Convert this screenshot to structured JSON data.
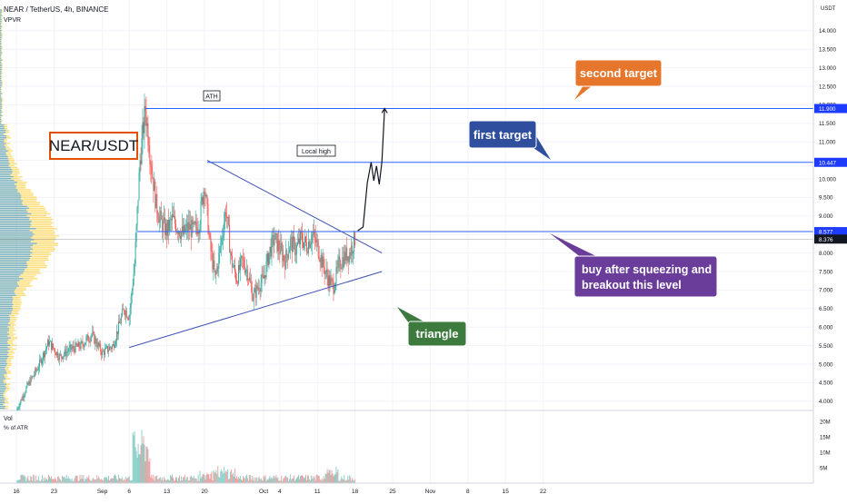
{
  "header": {
    "symbol_line": "NEAR / TetherUS, 4h, BINANCE",
    "indicator": "VPVR",
    "vol_title": "Vol",
    "vol_sub": "% of ATR"
  },
  "colors": {
    "up": "#26a69a",
    "down": "#ef5350",
    "line_blue": "#2962ff",
    "profile_blue": "#2196f3",
    "profile_yellow": "#ffc107",
    "callout_blue": "#2f4f9e",
    "callout_orange": "#e5762c",
    "callout_purple": "#6a3d9a",
    "callout_green": "#3d7a3d"
  },
  "labels": {
    "pair_box": "NEAR/USDT",
    "ath": "ATH",
    "local_high": "Local high",
    "triangle": "triangle",
    "first_target": "first target",
    "second_target": "second target",
    "buy_line1": "buy after squeezing and",
    "buy_line2": "breakout this level"
  },
  "chart_data": {
    "type": "candlestick",
    "price_axis": {
      "unit": "USDT",
      "ylim": [
        3.75,
        14.8
      ],
      "ticks": [
        "14.000",
        "13.500",
        "13.000",
        "12.500",
        "12.000",
        "11.500",
        "11.000",
        "10.500",
        "10.000",
        "9.500",
        "9.000",
        "8.500",
        "8.000",
        "7.500",
        "7.000",
        "6.500",
        "6.000",
        "5.500",
        "5.000",
        "4.500",
        "4.000"
      ],
      "badges": [
        {
          "label": "11.900",
          "value": 11.9,
          "style": "blue"
        },
        {
          "label": "10.447",
          "value": 10.447,
          "style": "blue"
        },
        {
          "label": "8.577",
          "value": 8.577,
          "style": "blue"
        },
        {
          "label": "8.376",
          "value": 8.376,
          "style": "dark"
        }
      ]
    },
    "volume_axis": {
      "ticks": [
        "20M",
        "15M",
        "10M",
        "5M"
      ],
      "max": 20000000
    },
    "time_axis": {
      "labels": [
        "16",
        "23",
        "Sep",
        "6",
        "13",
        "20",
        "Oct",
        "4",
        "11",
        "18",
        "25",
        "Nov",
        "8",
        "15",
        "22"
      ],
      "label_days": [
        -16,
        -9,
        0,
        5,
        12,
        19,
        30,
        33,
        40,
        47,
        54,
        61,
        68,
        75,
        82
      ]
    },
    "levels": [
      {
        "name": "ATH",
        "price": 11.9
      },
      {
        "name": "first target",
        "price": 10.447
      },
      {
        "name": "breakout level",
        "price": 8.577
      }
    ],
    "triangle": {
      "upper": [
        [
          19.5,
          10.5
        ],
        [
          52,
          8.0
        ]
      ],
      "lower": [
        [
          5,
          5.45
        ],
        [
          52,
          7.5
        ]
      ]
    },
    "projected_path": [
      [
        47.5,
        8.6
      ],
      [
        48.5,
        8.7
      ],
      [
        49.3,
        9.9
      ],
      [
        50,
        10.45
      ],
      [
        50.5,
        9.95
      ],
      [
        51,
        10.35
      ],
      [
        51.5,
        9.85
      ],
      [
        52,
        10.45
      ],
      [
        52.5,
        11.9
      ]
    ],
    "price_keypoints": [
      [
        -16,
        3.75
      ],
      [
        -14,
        4.4
      ],
      [
        -12,
        4.9
      ],
      [
        -10,
        5.6
      ],
      [
        -8,
        5.2
      ],
      [
        -6,
        5.4
      ],
      [
        -4,
        5.5
      ],
      [
        -2,
        5.8
      ],
      [
        0,
        5.3
      ],
      [
        2,
        5.5
      ],
      [
        3,
        6.0
      ],
      [
        4,
        6.5
      ],
      [
        5,
        6.3
      ],
      [
        6,
        7.7
      ],
      [
        7,
        10.5
      ],
      [
        8,
        11.9
      ],
      [
        9,
        10.5
      ],
      [
        10,
        9.3
      ],
      [
        11,
        8.8
      ],
      [
        12,
        8.6
      ],
      [
        13,
        8.9
      ],
      [
        14,
        8.7
      ],
      [
        15,
        8.5
      ],
      [
        16,
        8.7
      ],
      [
        17,
        8.6
      ],
      [
        18,
        8.8
      ],
      [
        19,
        9.9
      ],
      [
        20,
        8.2
      ],
      [
        21,
        7.3
      ],
      [
        22,
        8.2
      ],
      [
        23,
        9.2
      ],
      [
        24,
        7.8
      ],
      [
        25,
        7.3
      ],
      [
        26,
        7.8
      ],
      [
        27,
        7.5
      ],
      [
        28,
        6.8
      ],
      [
        29,
        7.1
      ],
      [
        30,
        7.3
      ],
      [
        31,
        8.0
      ],
      [
        32,
        8.4
      ],
      [
        33,
        8.1
      ],
      [
        34,
        7.8
      ],
      [
        35,
        8.3
      ],
      [
        36,
        8.1
      ],
      [
        37,
        8.4
      ],
      [
        38,
        8.2
      ],
      [
        39,
        8.5
      ],
      [
        40,
        8.2
      ],
      [
        41,
        7.7
      ],
      [
        42,
        7.3
      ],
      [
        43,
        7.1
      ],
      [
        44,
        7.7
      ],
      [
        45,
        7.9
      ],
      [
        46,
        8.0
      ],
      [
        47,
        8.376
      ]
    ],
    "volume_profile_note": "visible range volume profile (VPVR) on left edge",
    "visible_range_days": [
      -16,
      82
    ]
  }
}
